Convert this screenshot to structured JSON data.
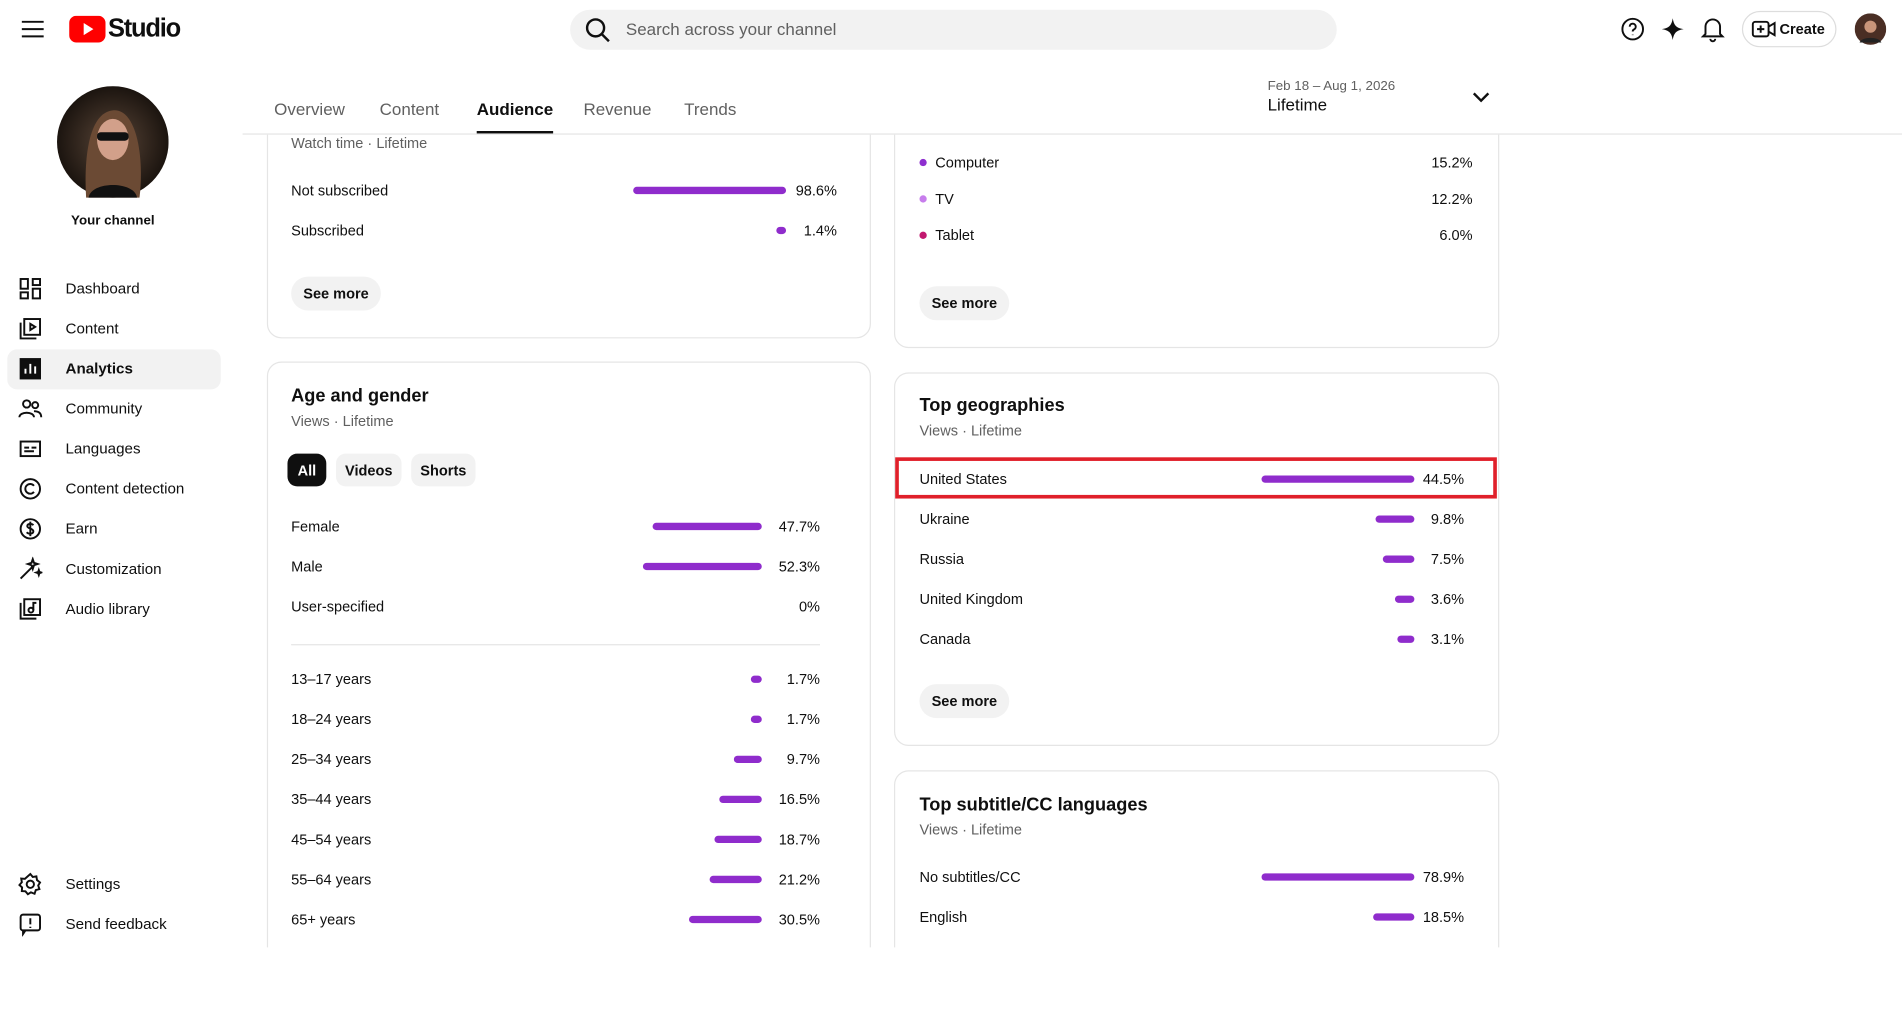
{
  "header": {
    "product": "Studio",
    "search_placeholder": "Search across your channel",
    "create_button": "Create"
  },
  "sidebar": {
    "channel_label": "Your channel",
    "nav": [
      "Dashboard",
      "Content",
      "Analytics",
      "Community",
      "Languages",
      "Content detection",
      "Earn",
      "Customization",
      "Audio library"
    ],
    "active": 2,
    "footer_nav": [
      "Settings",
      "Send feedback"
    ]
  },
  "tabs": {
    "items": [
      "Overview",
      "Content",
      "Audience",
      "Revenue",
      "Trends"
    ],
    "active": 2
  },
  "date_filter": {
    "range": "Feb 18 – Aug 1, 2026",
    "period": "Lifetime"
  },
  "subscription_card": {
    "subtitle": "Watch time · Lifetime",
    "rows": [
      {
        "label": "Not subscribed",
        "value": 98.6,
        "value_label": "98.6%"
      },
      {
        "label": "Subscribed",
        "value": 1.4,
        "value_label": "1.4%"
      }
    ],
    "button": "See more"
  },
  "device_card": {
    "rows": [
      {
        "label": "Computer",
        "color": "#8e2fcf",
        "value_label": "15.2%"
      },
      {
        "label": "TV",
        "color": "#c77dec",
        "value_label": "12.2%"
      },
      {
        "label": "Tablet",
        "color": "#c2186f",
        "value_label": "6.0%"
      }
    ],
    "button": "See more"
  },
  "age_gender_card": {
    "title": "Age and gender",
    "subtitle": "Views · Lifetime",
    "filters": [
      "All",
      "Videos",
      "Shorts"
    ],
    "active_filter": 0,
    "gender": [
      {
        "label": "Female",
        "value": 47.7,
        "value_label": "47.7%"
      },
      {
        "label": "Male",
        "value": 52.3,
        "value_label": "52.3%"
      },
      {
        "label": "User-specified",
        "value": 0,
        "value_label": "0%"
      }
    ],
    "age": [
      {
        "label": "13–17 years",
        "value": 1.7,
        "value_label": "1.7%"
      },
      {
        "label": "18–24 years",
        "value": 1.7,
        "value_label": "1.7%"
      },
      {
        "label": "25–34 years",
        "value": 9.7,
        "value_label": "9.7%"
      },
      {
        "label": "35–44 years",
        "value": 16.5,
        "value_label": "16.5%"
      },
      {
        "label": "45–54 years",
        "value": 18.7,
        "value_label": "18.7%"
      },
      {
        "label": "55–64 years",
        "value": 21.2,
        "value_label": "21.2%"
      },
      {
        "label": "65+ years",
        "value": 30.5,
        "value_label": "30.5%"
      }
    ]
  },
  "geographies_card": {
    "title": "Top geographies",
    "subtitle": "Views · Lifetime",
    "highlighted": 0,
    "rows": [
      {
        "label": "United States",
        "value": 44.5,
        "value_label": "44.5%"
      },
      {
        "label": "Ukraine",
        "value": 9.8,
        "value_label": "9.8%"
      },
      {
        "label": "Russia",
        "value": 7.5,
        "value_label": "7.5%"
      },
      {
        "label": "United Kingdom",
        "value": 3.6,
        "value_label": "3.6%"
      },
      {
        "label": "Canada",
        "value": 3.1,
        "value_label": "3.1%"
      }
    ],
    "button": "See more"
  },
  "subtitles_card": {
    "title": "Top subtitle/CC languages",
    "subtitle": "Views · Lifetime",
    "rows": [
      {
        "label": "No subtitles/CC",
        "value": 78.9,
        "value_label": "78.9%"
      },
      {
        "label": "English",
        "value": 18.5,
        "value_label": "18.5%"
      }
    ]
  }
}
